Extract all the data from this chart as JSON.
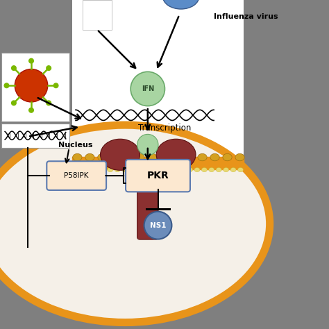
{
  "bg_color": "#7f7f7f",
  "cell_membrane_color": "#e8941a",
  "ifn_color": "#a8d5a2",
  "ifn_edge_color": "#6aaa6a",
  "receptor_color": "#8b3030",
  "receptor_edge_color": "#5a1010",
  "p58ipk_box_color": "#fce8d0",
  "pkr_box_color": "#fce8d0",
  "box_edge_color": "#5b7ab0",
  "ns1_color": "#6b8cba",
  "ns1_edge_color": "#3a5a8a",
  "blue_oval_color": "#5b8cc8",
  "blue_oval_edge": "#3a5a8a",
  "virus_core_color": "#cc3300",
  "virus_spike_color": "#7ab800",
  "white_color": "#ffffff",
  "cell_fill_color": "#f5f0e8",
  "cell_edge_color": "#e8941a",
  "membrane_dot_color": "#d4a020",
  "membrane_dot2_color": "#e8d870",
  "title_text": "Influenza virus",
  "ifn_text": "IFN",
  "nucleus_text": "Nucleus",
  "transcription_text": "Transcription",
  "p58ipk_text": "P58IPK",
  "pkr_text": "PKR",
  "ns1_text": "NS1"
}
